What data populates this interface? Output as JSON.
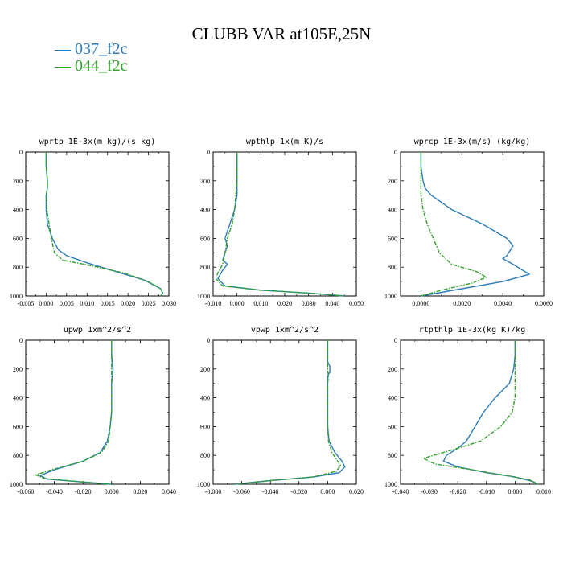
{
  "title": "CLUBB VAR at105E,25N",
  "legend": [
    {
      "label": "— 037_f2c",
      "color": "#2c7bb6"
    },
    {
      "label": "— 044_f2c",
      "color": "#33a02c"
    }
  ],
  "chart_data": [
    {
      "type": "line",
      "title": "wprtp  1E-3x(m kg)/(s kg)",
      "xlim": [
        -0.005,
        0.03
      ],
      "xticks": [
        -0.005,
        0.0,
        0.005,
        0.01,
        0.015,
        0.02,
        0.025,
        0.03
      ],
      "xtick_labels": [
        "-0.005",
        "0.000",
        "0.005",
        "0.010",
        "0.015",
        "0.020",
        "0.025",
        "0.030"
      ],
      "ylim": [
        1000,
        0
      ],
      "yticks": [
        0,
        200,
        400,
        600,
        800,
        1000
      ],
      "ytick_labels": [
        "0",
        "200",
        "400",
        "600",
        "800",
        "1000"
      ],
      "series": [
        {
          "name": "037_f2c",
          "color": "#2c7bb6",
          "dashed": false,
          "points": [
            [
              0.0,
              0
            ],
            [
              0.0,
              100
            ],
            [
              0.0003,
              200
            ],
            [
              0.0003,
              250
            ],
            [
              0.0,
              300
            ],
            [
              0.0,
              400
            ],
            [
              0.0003,
              500
            ],
            [
              0.0015,
              600
            ],
            [
              0.003,
              680
            ],
            [
              0.005,
              720
            ],
            [
              0.01,
              770
            ],
            [
              0.017,
              830
            ],
            [
              0.024,
              890
            ],
            [
              0.028,
              950
            ],
            [
              0.0285,
              980
            ],
            [
              0.028,
              1000
            ]
          ]
        },
        {
          "name": "044_f2c",
          "color": "#33a02c",
          "dashed": true,
          "points": [
            [
              0.0,
              0
            ],
            [
              0.0,
              100
            ],
            [
              0.0003,
              200
            ],
            [
              0.0003,
              250
            ],
            [
              0.0,
              300
            ],
            [
              0.0002,
              400
            ],
            [
              0.0007,
              500
            ],
            [
              0.0013,
              600
            ],
            [
              0.002,
              700
            ],
            [
              0.004,
              750
            ],
            [
              0.011,
              790
            ],
            [
              0.019,
              840
            ],
            [
              0.025,
              900
            ],
            [
              0.028,
              950
            ],
            [
              0.0285,
              980
            ],
            [
              0.028,
              1000
            ]
          ]
        }
      ]
    },
    {
      "type": "line",
      "title": "wpthlp  1x(m K)/s",
      "xlim": [
        -0.01,
        0.05
      ],
      "xticks": [
        -0.01,
        0.0,
        0.01,
        0.02,
        0.03,
        0.04,
        0.05
      ],
      "xtick_labels": [
        "-0.010",
        "0.000",
        "0.010",
        "0.020",
        "0.030",
        "0.040",
        "0.050"
      ],
      "ylim": [
        1000,
        0
      ],
      "yticks": [
        0,
        200,
        400,
        600,
        800,
        1000
      ],
      "ytick_labels": [
        "0",
        "200",
        "400",
        "600",
        "800",
        "1000"
      ],
      "series": [
        {
          "name": "037_f2c",
          "color": "#2c7bb6",
          "dashed": false,
          "points": [
            [
              0.0,
              0
            ],
            [
              0.0,
              200
            ],
            [
              0.0,
              300
            ],
            [
              -0.001,
              400
            ],
            [
              -0.003,
              500
            ],
            [
              -0.005,
              600
            ],
            [
              -0.004,
              650
            ],
            [
              -0.005,
              700
            ],
            [
              -0.006,
              750
            ],
            [
              -0.004,
              780
            ],
            [
              -0.006,
              820
            ],
            [
              -0.008,
              880
            ],
            [
              -0.005,
              930
            ],
            [
              0.01,
              960
            ],
            [
              0.03,
              980
            ],
            [
              0.045,
              1000
            ]
          ]
        },
        {
          "name": "044_f2c",
          "color": "#33a02c",
          "dashed": true,
          "points": [
            [
              0.0,
              0
            ],
            [
              0.0,
              200
            ],
            [
              -0.0005,
              300
            ],
            [
              -0.001,
              400
            ],
            [
              -0.002,
              500
            ],
            [
              -0.004,
              600
            ],
            [
              -0.005,
              700
            ],
            [
              -0.006,
              780
            ],
            [
              -0.008,
              840
            ],
            [
              -0.009,
              880
            ],
            [
              -0.006,
              930
            ],
            [
              0.01,
              960
            ],
            [
              0.03,
              980
            ],
            [
              0.045,
              1000
            ]
          ]
        }
      ]
    },
    {
      "type": "line",
      "title": "wprcp  1E-3x(m/s) (kg/kg)",
      "xlim": [
        -0.001,
        0.006
      ],
      "xticks": [
        0.0,
        0.002,
        0.004,
        0.006
      ],
      "xtick_labels": [
        "0.0000",
        "0.0020",
        "0.0040",
        "0.0060"
      ],
      "ylim": [
        1000,
        0
      ],
      "yticks": [
        0,
        200,
        400,
        600,
        800,
        1000
      ],
      "ytick_labels": [
        "0",
        "200",
        "400",
        "600",
        "800",
        "1000"
      ],
      "series": [
        {
          "name": "037_f2c",
          "color": "#2c7bb6",
          "dashed": false,
          "points": [
            [
              0.0,
              0
            ],
            [
              0.0,
              100
            ],
            [
              0.0001,
              200
            ],
            [
              0.0002,
              250
            ],
            [
              0.0005,
              300
            ],
            [
              0.0015,
              400
            ],
            [
              0.003,
              500
            ],
            [
              0.0042,
              600
            ],
            [
              0.0045,
              650
            ],
            [
              0.0042,
              720
            ],
            [
              0.004,
              740
            ],
            [
              0.0045,
              780
            ],
            [
              0.0053,
              850
            ],
            [
              0.004,
              900
            ],
            [
              0.002,
              950
            ],
            [
              0.0,
              1000
            ]
          ]
        },
        {
          "name": "044_f2c",
          "color": "#33a02c",
          "dashed": true,
          "points": [
            [
              0.0,
              0
            ],
            [
              0.0,
              100
            ],
            [
              0.0,
              200
            ],
            [
              0.0,
              300
            ],
            [
              0.0001,
              400
            ],
            [
              0.0003,
              500
            ],
            [
              0.0006,
              600
            ],
            [
              0.0009,
              700
            ],
            [
              0.0015,
              780
            ],
            [
              0.0027,
              830
            ],
            [
              0.0032,
              870
            ],
            [
              0.0025,
              910
            ],
            [
              0.001,
              960
            ],
            [
              0.0,
              1000
            ]
          ]
        }
      ]
    },
    {
      "type": "line",
      "title": "upwp  1xm^2/s^2",
      "xlim": [
        -0.06,
        0.04
      ],
      "xticks": [
        -0.06,
        -0.04,
        -0.02,
        0.0,
        0.02,
        0.04
      ],
      "xtick_labels": [
        "-0.060",
        "-0.040",
        "-0.020",
        "0.000",
        "0.020",
        "0.040"
      ],
      "ylim": [
        1000,
        0
      ],
      "yticks": [
        0,
        200,
        400,
        600,
        800,
        1000
      ],
      "ytick_labels": [
        "0",
        "200",
        "400",
        "600",
        "800",
        "1000"
      ],
      "series": [
        {
          "name": "037_f2c",
          "color": "#2c7bb6",
          "dashed": false,
          "points": [
            [
              0.0,
              0
            ],
            [
              0.0,
              100
            ],
            [
              0.001,
              200
            ],
            [
              0.0,
              300
            ],
            [
              0.0,
              400
            ],
            [
              0.0,
              500
            ],
            [
              -0.001,
              600
            ],
            [
              -0.003,
              700
            ],
            [
              -0.008,
              780
            ],
            [
              -0.02,
              840
            ],
            [
              -0.04,
              900
            ],
            [
              -0.05,
              940
            ],
            [
              -0.045,
              965
            ],
            [
              -0.02,
              985
            ],
            [
              0.0,
              1000
            ]
          ]
        },
        {
          "name": "044_f2c",
          "color": "#33a02c",
          "dashed": true,
          "points": [
            [
              0.0,
              0
            ],
            [
              0.0,
              100
            ],
            [
              0.0,
              200
            ],
            [
              0.0,
              300
            ],
            [
              0.0,
              400
            ],
            [
              0.0,
              500
            ],
            [
              -0.001,
              600
            ],
            [
              -0.002,
              700
            ],
            [
              -0.007,
              780
            ],
            [
              -0.02,
              840
            ],
            [
              -0.042,
              900
            ],
            [
              -0.053,
              935
            ],
            [
              -0.047,
              960
            ],
            [
              -0.02,
              985
            ],
            [
              0.0,
              1000
            ]
          ]
        }
      ]
    },
    {
      "type": "line",
      "title": "vpwp  1xm^2/s^2",
      "xlim": [
        -0.08,
        0.02
      ],
      "xticks": [
        -0.08,
        -0.06,
        -0.04,
        -0.02,
        0.0,
        0.02
      ],
      "xtick_labels": [
        "-0.080",
        "-0.060",
        "-0.040",
        "-0.020",
        "0.000",
        "0.020"
      ],
      "ylim": [
        1000,
        0
      ],
      "yticks": [
        0,
        200,
        400,
        600,
        800,
        1000
      ],
      "ytick_labels": [
        "0",
        "200",
        "400",
        "600",
        "800",
        "1000"
      ],
      "series": [
        {
          "name": "037_f2c",
          "color": "#2c7bb6",
          "dashed": false,
          "points": [
            [
              0.0,
              0
            ],
            [
              0.0,
              150
            ],
            [
              0.0015,
              180
            ],
            [
              0.0015,
              220
            ],
            [
              0.0,
              250
            ],
            [
              0.0,
              400
            ],
            [
              0.0,
              600
            ],
            [
              0.001,
              700
            ],
            [
              0.005,
              780
            ],
            [
              0.01,
              840
            ],
            [
              0.012,
              880
            ],
            [
              0.008,
              920
            ],
            [
              -0.01,
              950
            ],
            [
              -0.04,
              975
            ],
            [
              -0.065,
              1000
            ]
          ]
        },
        {
          "name": "044_f2c",
          "color": "#33a02c",
          "dashed": true,
          "points": [
            [
              0.0,
              0
            ],
            [
              0.0,
              200
            ],
            [
              0.0005,
              250
            ],
            [
              0.0,
              300
            ],
            [
              0.0,
              400
            ],
            [
              0.0,
              600
            ],
            [
              0.0005,
              700
            ],
            [
              0.003,
              780
            ],
            [
              0.007,
              840
            ],
            [
              0.009,
              870
            ],
            [
              0.006,
              910
            ],
            [
              -0.01,
              950
            ],
            [
              -0.04,
              975
            ],
            [
              -0.065,
              1000
            ]
          ]
        }
      ]
    },
    {
      "type": "line",
      "title": "rtpthlp  1E-3x(kg K)/kg",
      "xlim": [
        -0.04,
        0.01
      ],
      "xticks": [
        -0.04,
        -0.03,
        -0.02,
        -0.01,
        0.0,
        0.01
      ],
      "xtick_labels": [
        "-0.040",
        "-0.030",
        "-0.020",
        "-0.010",
        "0.000",
        "0.010"
      ],
      "ylim": [
        1000,
        0
      ],
      "yticks": [
        0,
        200,
        400,
        600,
        800,
        1000
      ],
      "ytick_labels": [
        "0",
        "200",
        "400",
        "600",
        "800",
        "1000"
      ],
      "series": [
        {
          "name": "037_f2c",
          "color": "#2c7bb6",
          "dashed": false,
          "points": [
            [
              0.0,
              0
            ],
            [
              0.0,
              100
            ],
            [
              -0.0005,
              200
            ],
            [
              -0.002,
              300
            ],
            [
              -0.007,
              400
            ],
            [
              -0.011,
              500
            ],
            [
              -0.014,
              600
            ],
            [
              -0.017,
              700
            ],
            [
              -0.02,
              750
            ],
            [
              -0.024,
              800
            ],
            [
              -0.025,
              840
            ],
            [
              -0.02,
              880
            ],
            [
              -0.01,
              920
            ],
            [
              0.0,
              950
            ],
            [
              0.006,
              980
            ],
            [
              0.008,
              1000
            ]
          ]
        },
        {
          "name": "044_f2c",
          "color": "#33a02c",
          "dashed": true,
          "points": [
            [
              0.0,
              0
            ],
            [
              0.0,
              100
            ],
            [
              0.0,
              200
            ],
            [
              0.0,
              300
            ],
            [
              0.0,
              400
            ],
            [
              -0.001,
              500
            ],
            [
              -0.005,
              600
            ],
            [
              -0.012,
              700
            ],
            [
              -0.02,
              750
            ],
            [
              -0.032,
              820
            ],
            [
              -0.028,
              860
            ],
            [
              -0.015,
              900
            ],
            [
              -0.003,
              940
            ],
            [
              0.005,
              970
            ],
            [
              0.008,
              1000
            ]
          ]
        }
      ]
    }
  ]
}
